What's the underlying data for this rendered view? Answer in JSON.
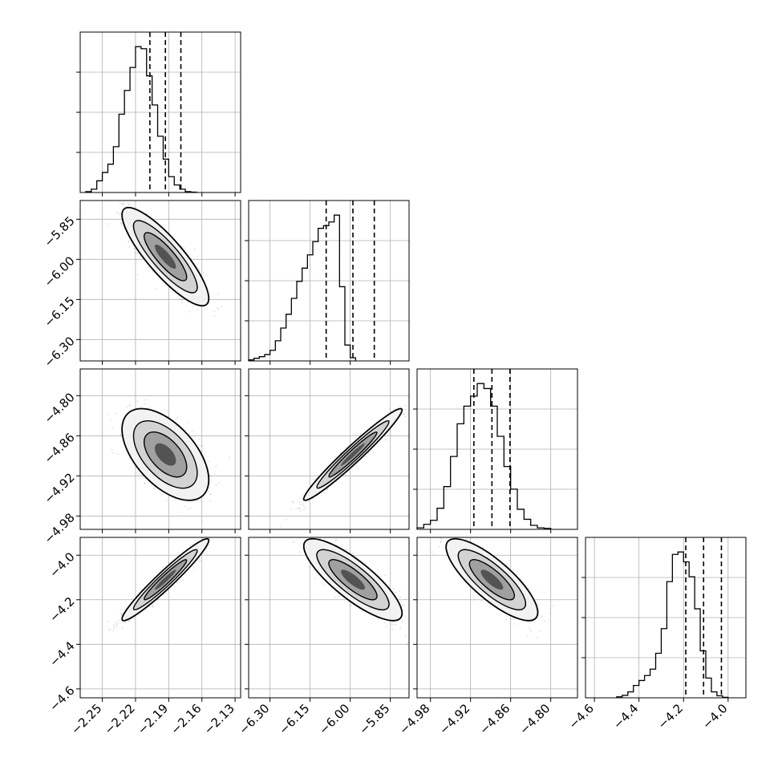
{
  "chart_data": {
    "type": "corner",
    "title": "",
    "grid": true,
    "colors": {
      "line": "#000000",
      "grid": "#b0b0b0",
      "scatter": "#000000"
    },
    "params": [
      {
        "name": "",
        "range": [
          -2.27,
          -2.125
        ],
        "ticks": [
          -2.25,
          -2.22,
          -2.19,
          -2.16,
          -2.13
        ],
        "tick_labels": [
          "−2.25",
          "−2.22",
          "−2.19",
          "−2.16",
          "−2.13"
        ],
        "quantiles": [
          -2.207,
          -2.193,
          -2.179
        ],
        "hist": {
          "bin_start": -2.265,
          "bin_width": 0.005,
          "counts": [
            2,
            8,
            28,
            48,
            68,
            110,
            188,
            245,
            300,
            350,
            345,
            280,
            210,
            135,
            80,
            38,
            18,
            8,
            2,
            1
          ]
        }
      },
      {
        "name": "",
        "range": [
          -6.38,
          -5.78
        ],
        "ticks": [
          -6.3,
          -6.15,
          -6.0,
          -5.85
        ],
        "tick_labels": [
          "−6.30",
          "−6.15",
          "−6.00",
          "−5.85"
        ],
        "quantiles": [
          -6.09,
          -5.99,
          -5.91
        ],
        "hist": {
          "bin_start": -6.38,
          "bin_width": 0.02,
          "counts": [
            2,
            5,
            8,
            12,
            20,
            38,
            62,
            88,
            118,
            150,
            175,
            200,
            225,
            250,
            255,
            262,
            275,
            140,
            30,
            6
          ]
        }
      },
      {
        "name": "",
        "range": [
          -5.0,
          -4.76
        ],
        "ticks": [
          -4.98,
          -4.92,
          -4.86,
          -4.8
        ],
        "tick_labels": [
          "−4.98",
          "−4.92",
          "−4.86",
          "−4.80"
        ],
        "quantiles": [
          -4.915,
          -4.888,
          -4.861
        ],
        "hist": {
          "bin_start": -5.0,
          "bin_width": 0.01,
          "counts": [
            3,
            10,
            18,
            42,
            85,
            145,
            210,
            245,
            265,
            290,
            280,
            245,
            185,
            125,
            80,
            40,
            20,
            8,
            3,
            2
          ]
        }
      },
      {
        "name": "",
        "range": [
          -4.64,
          -3.92
        ],
        "ticks": [
          -4.6,
          -4.4,
          -4.2,
          -4.0
        ],
        "tick_labels": [
          "−4.6",
          "−4.4",
          "−4.2",
          "−4.0"
        ],
        "quantiles": [
          -4.19,
          -4.11,
          -4.03
        ],
        "hist": {
          "bin_start": -4.5,
          "bin_width": 0.025,
          "counts": [
            2,
            5,
            12,
            25,
            35,
            45,
            58,
            90,
            140,
            235,
            290,
            295,
            275,
            245,
            180,
            95,
            40,
            12,
            4,
            1
          ]
        }
      }
    ],
    "pairs": [
      {
        "x": 0,
        "y": 1,
        "mean": [
          -2.193,
          -5.99
        ],
        "sd": [
          0.016,
          0.075
        ],
        "rho": -0.85
      },
      {
        "x": 0,
        "y": 2,
        "mean": [
          -2.193,
          -4.888
        ],
        "sd": [
          0.016,
          0.028
        ],
        "rho": -0.55
      },
      {
        "x": 1,
        "y": 2,
        "mean": [
          -5.99,
          -4.888
        ],
        "sd": [
          0.075,
          0.028
        ],
        "rho": 0.97
      },
      {
        "x": 0,
        "y": 3,
        "mean": [
          -2.193,
          -4.11
        ],
        "sd": [
          0.016,
          0.075
        ],
        "rho": 0.96
      },
      {
        "x": 1,
        "y": 3,
        "mean": [
          -5.99,
          -4.11
        ],
        "sd": [
          0.075,
          0.075
        ],
        "rho": -0.82
      },
      {
        "x": 2,
        "y": 3,
        "mean": [
          -4.888,
          -4.11
        ],
        "sd": [
          0.028,
          0.075
        ],
        "rho": -0.8
      }
    ]
  }
}
